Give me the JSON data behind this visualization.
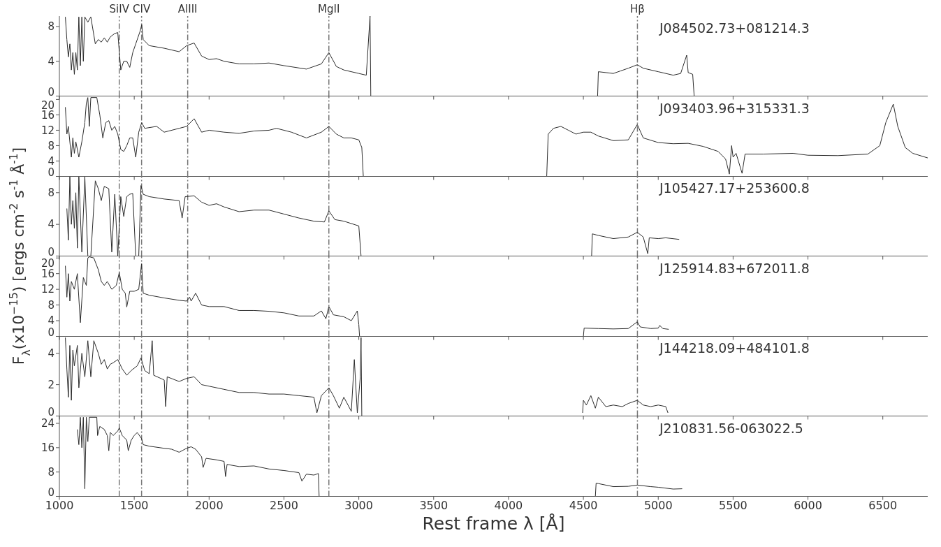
{
  "chart_data": [
    {
      "type": "line",
      "ylabel": "F$_{λ}$(x10$^{−15}$)  [ergs cm$^{-2}$ s$^{-1}$ Å$^{-1}$]",
      "annotations": [
        "J084502.73+081214.3"
      ],
      "xlim": [
        1000,
        6800
      ],
      "xticks": [
        1000,
        1500,
        2000,
        2500,
        3000,
        3500,
        4000,
        4500,
        5000,
        5500,
        6000,
        6500
      ],
      "ylim": [
        0,
        9.2
      ],
      "yticks": [
        0,
        4,
        8
      ],
      "tick_labels": "y",
      "ref_lines": [
        {
          "axis": "x",
          "value": 1400,
          "label": "SiIV",
          "color": "#777777",
          "line_style": "dashed"
        },
        {
          "axis": "x",
          "value": 1549,
          "label": "CIV",
          "color": "#777777",
          "line_style": "dashed"
        },
        {
          "axis": "x",
          "value": 1857,
          "label": "AlIII",
          "color": "#777777",
          "line_style": "dashed"
        },
        {
          "axis": "x",
          "value": 2800,
          "label": "MgII",
          "color": "#777777",
          "line_style": "dashed"
        },
        {
          "axis": "x",
          "value": 4861,
          "label": "Hβ",
          "color": "#777777",
          "line_style": "dashed"
        }
      ],
      "series": [
        {
          "color": "#2b2b2b",
          "x": [
            1040,
            1050,
            1060,
            1070,
            1080,
            1090,
            1100,
            1110,
            1120,
            1130,
            1140,
            1150,
            1160,
            1170,
            1190,
            1210,
            1240,
            1260,
            1280,
            1300,
            1320,
            1340,
            1370,
            1390,
            1410,
            1430,
            1450,
            1470,
            1490,
            1510,
            1540,
            1550,
            1560,
            1600,
            1700,
            1800,
            1850,
            1900,
            1950,
            2000,
            2050,
            2100,
            2200,
            2300,
            2400,
            2500,
            2650,
            2750,
            2800,
            2850,
            2900,
            2950,
            3000,
            3050,
            3075,
            3080,
            4595,
            4600,
            4650,
            4700,
            4750,
            4800,
            4860,
            4900,
            5000,
            5100,
            5150,
            5190,
            5200,
            5230,
            5240
          ],
          "values": [
            9.1,
            6.5,
            4.5,
            6,
            3,
            5,
            2.5,
            5,
            3,
            9.1,
            3.5,
            9.1,
            4,
            9.1,
            8.5,
            9.1,
            6,
            6.5,
            6.2,
            6.7,
            6.2,
            6.8,
            7.2,
            7.3,
            3,
            4,
            4,
            3.3,
            5,
            6,
            7.5,
            8.2,
            6.5,
            5.8,
            5.5,
            5.1,
            5.8,
            6.1,
            4.6,
            4.2,
            4.3,
            4.0,
            3.7,
            3.7,
            3.8,
            3.5,
            3.1,
            3.7,
            5.0,
            3.4,
            3.0,
            2.8,
            2.6,
            2.4,
            9.2,
            0,
            0,
            2.8,
            2.7,
            2.6,
            2.9,
            3.2,
            3.6,
            3.2,
            2.8,
            2.4,
            2.6,
            4.7,
            2.7,
            2.5,
            0
          ]
        }
      ]
    },
    {
      "type": "line",
      "annotations": [
        "J093403.96+315331.3"
      ],
      "xlim": [
        1000,
        6800
      ],
      "xticks": [
        1000,
        1500,
        2000,
        2500,
        3000,
        3500,
        4000,
        4500,
        5000,
        5500,
        6000,
        6500
      ],
      "ylim": [
        0,
        20.8
      ],
      "yticks": [
        0,
        4,
        8,
        12,
        16,
        20
      ],
      "tick_labels": "y",
      "ref_lines": [
        {
          "axis": "x",
          "value": 1400,
          "color": "#777777",
          "line_style": "dashed"
        },
        {
          "axis": "x",
          "value": 1549,
          "color": "#777777",
          "line_style": "dashed"
        },
        {
          "axis": "x",
          "value": 1857,
          "color": "#777777",
          "line_style": "dashed"
        },
        {
          "axis": "x",
          "value": 2800,
          "color": "#777777",
          "line_style": "dashed"
        },
        {
          "axis": "x",
          "value": 4861,
          "color": "#777777",
          "line_style": "dashed"
        }
      ],
      "series": [
        {
          "color": "#2b2b2b",
          "x": [
            1040,
            1050,
            1060,
            1080,
            1090,
            1100,
            1110,
            1130,
            1150,
            1170,
            1180,
            1190,
            1200,
            1210,
            1250,
            1270,
            1290,
            1310,
            1330,
            1350,
            1370,
            1390,
            1410,
            1430,
            1450,
            1470,
            1490,
            1510,
            1530,
            1550,
            1570,
            1650,
            1700,
            1800,
            1850,
            1900,
            1950,
            2000,
            2100,
            2200,
            2300,
            2400,
            2450,
            2550,
            2650,
            2750,
            2800,
            2850,
            2900,
            2950,
            3000,
            3020,
            3030,
            3100,
            4255,
            4265,
            4300,
            4350,
            4400,
            4450,
            4500,
            4550,
            4600,
            4700,
            4800,
            4860,
            4900,
            5000,
            5100,
            5200,
            5300,
            5400,
            5450,
            5475,
            5490,
            5500,
            5520,
            5560,
            5580,
            5700,
            5900,
            6000,
            6200,
            6400,
            6480,
            6520,
            6570,
            6600,
            6650,
            6700,
            6800
          ],
          "values": [
            18,
            11,
            13,
            5,
            10,
            6,
            9,
            5,
            9,
            14,
            19,
            20.5,
            13,
            20.5,
            20.5,
            16,
            10,
            14,
            14.5,
            12,
            13,
            11,
            7,
            6.5,
            8,
            10,
            10,
            5,
            11.5,
            14,
            12.5,
            13,
            11.5,
            12.5,
            13,
            15,
            11.5,
            12,
            11.5,
            11.2,
            11.8,
            12,
            12.5,
            11.5,
            10,
            11.5,
            13,
            11,
            10,
            10,
            9.5,
            7.5,
            0,
            null,
            0,
            11,
            12.5,
            13,
            12,
            11,
            11.5,
            11.5,
            10.5,
            9.3,
            9.5,
            13.5,
            10,
            8.8,
            8.5,
            8.6,
            7.8,
            6.5,
            4.5,
            0.6,
            8,
            5,
            6,
            0.8,
            5.8,
            5.8,
            6,
            5.5,
            5.4,
            5.8,
            8,
            14,
            18.8,
            13,
            7.5,
            6,
            4.8
          ]
        }
      ]
    },
    {
      "type": "line",
      "annotations": [
        "J105427.17+253600.8"
      ],
      "xlim": [
        1000,
        6800
      ],
      "xticks": [
        1000,
        1500,
        2000,
        2500,
        3000,
        3500,
        4000,
        4500,
        5000,
        5500,
        6000,
        6500
      ],
      "ylim": [
        0,
        10.1
      ],
      "yticks": [
        0,
        4,
        8
      ],
      "tick_labels": "y",
      "ref_lines": [
        {
          "axis": "x",
          "value": 1400,
          "color": "#777777",
          "line_style": "dashed"
        },
        {
          "axis": "x",
          "value": 1549,
          "color": "#777777",
          "line_style": "dashed"
        },
        {
          "axis": "x",
          "value": 1857,
          "color": "#777777",
          "line_style": "dashed"
        },
        {
          "axis": "x",
          "value": 2800,
          "color": "#777777",
          "line_style": "dashed"
        },
        {
          "axis": "x",
          "value": 4861,
          "color": "#777777",
          "line_style": "dashed"
        }
      ],
      "series": [
        {
          "color": "#2b2b2b",
          "x": [
            1050,
            1060,
            1070,
            1080,
            1090,
            1100,
            1110,
            1120,
            1130,
            1150,
            1170,
            1190,
            1210,
            1240,
            1260,
            1280,
            1300,
            1330,
            1350,
            1370,
            1390,
            1410,
            1430,
            1450,
            1470,
            1490,
            1510,
            1530,
            1545,
            1560,
            1600,
            1700,
            1800,
            1820,
            1840,
            1900,
            1950,
            2000,
            2050,
            2100,
            2200,
            2300,
            2400,
            2500,
            2600,
            2700,
            2770,
            2800,
            2840,
            2900,
            3000,
            3015,
            3100,
            4555,
            4560,
            4600,
            4700,
            4800,
            4860,
            4900,
            4930,
            4940,
            5000,
            5050,
            5140
          ],
          "values": [
            6,
            2,
            10,
            4,
            7,
            3.5,
            8,
            1,
            10,
            0.5,
            10,
            0,
            0,
            9.5,
            8.5,
            7,
            8.8,
            8.5,
            0.5,
            7.8,
            0,
            7.5,
            5,
            7.5,
            7.8,
            7.9,
            0,
            0,
            8.9,
            7.8,
            7.5,
            7.2,
            7,
            4.8,
            7.5,
            7.6,
            6.8,
            6.4,
            6.6,
            6.2,
            5.6,
            5.8,
            5.8,
            5.3,
            4.8,
            4.4,
            4.3,
            5.7,
            4.6,
            4.4,
            3.8,
            0,
            null,
            0,
            2.8,
            2.6,
            2.2,
            2.4,
            3.0,
            2.4,
            0.3,
            2.3,
            2.2,
            2.3,
            2.1
          ]
        }
      ]
    },
    {
      "type": "line",
      "annotations": [
        "J125914.83+672011.8"
      ],
      "xlim": [
        1000,
        6800
      ],
      "xticks": [
        1000,
        1500,
        2000,
        2500,
        3000,
        3500,
        4000,
        4500,
        5000,
        5500,
        6000,
        6500
      ],
      "ylim": [
        0,
        20.4
      ],
      "yticks": [
        0,
        4,
        8,
        12,
        16,
        20
      ],
      "tick_labels": "y",
      "ref_lines": [
        {
          "axis": "x",
          "value": 1400,
          "color": "#777777",
          "line_style": "dashed"
        },
        {
          "axis": "x",
          "value": 1549,
          "color": "#777777",
          "line_style": "dashed"
        },
        {
          "axis": "x",
          "value": 1857,
          "color": "#777777",
          "line_style": "dashed"
        },
        {
          "axis": "x",
          "value": 2800,
          "color": "#777777",
          "line_style": "dashed"
        },
        {
          "axis": "x",
          "value": 4861,
          "color": "#777777",
          "line_style": "dashed"
        }
      ],
      "series": [
        {
          "color": "#2b2b2b",
          "x": [
            1040,
            1050,
            1060,
            1070,
            1080,
            1100,
            1120,
            1140,
            1160,
            1180,
            1190,
            1200,
            1230,
            1260,
            1280,
            1300,
            1320,
            1350,
            1380,
            1400,
            1420,
            1440,
            1450,
            1470,
            1500,
            1530,
            1549,
            1560,
            1600,
            1700,
            1800,
            1850,
            1870,
            1880,
            1910,
            1950,
            2000,
            2100,
            2200,
            2300,
            2400,
            2500,
            2600,
            2700,
            2750,
            2780,
            2800,
            2830,
            2900,
            2950,
            2990,
            3000,
            3005,
            4500,
            4505,
            4600,
            4700,
            4800,
            4860,
            4880,
            4950,
            5000,
            5010,
            5030,
            5070
          ],
          "values": [
            18,
            10,
            16,
            9,
            14,
            12,
            16,
            3.5,
            15,
            13,
            20,
            20.3,
            20,
            17,
            14,
            13,
            14,
            12,
            13,
            16.3,
            12,
            11,
            7.5,
            11.5,
            11.5,
            12,
            18.5,
            11,
            10.5,
            9.8,
            9.2,
            9,
            10,
            9,
            11,
            8,
            7.6,
            7.6,
            6.6,
            6.6,
            6.4,
            6,
            5.2,
            5.2,
            6.5,
            4.5,
            7.6,
            5.5,
            5,
            4,
            6.5,
            3,
            0,
            0,
            2.1,
            2.0,
            1.9,
            2.0,
            3.7,
            2.4,
            2.0,
            2.1,
            2.8,
            2.0,
            1.8
          ]
        }
      ]
    },
    {
      "type": "line",
      "annotations": [
        "J144218.09+484101.8"
      ],
      "xlim": [
        1000,
        6800
      ],
      "xticks": [
        1000,
        1500,
        2000,
        2500,
        3000,
        3500,
        4000,
        4500,
        5000,
        5500,
        6000,
        6500
      ],
      "ylim": [
        0,
        5.1
      ],
      "yticks": [
        0,
        2,
        4
      ],
      "tick_labels": "y",
      "ref_lines": [
        {
          "axis": "x",
          "value": 1400,
          "color": "#777777",
          "line_style": "dashed"
        },
        {
          "axis": "x",
          "value": 1549,
          "color": "#777777",
          "line_style": "dashed"
        },
        {
          "axis": "x",
          "value": 1857,
          "color": "#777777",
          "line_style": "dashed"
        },
        {
          "axis": "x",
          "value": 2800,
          "color": "#777777",
          "line_style": "dashed"
        },
        {
          "axis": "x",
          "value": 4861,
          "color": "#777777",
          "line_style": "dashed"
        }
      ],
      "series": [
        {
          "color": "#2b2b2b",
          "x": [
            1040,
            1050,
            1060,
            1070,
            1080,
            1090,
            1100,
            1120,
            1130,
            1150,
            1170,
            1190,
            1210,
            1230,
            1260,
            1280,
            1300,
            1320,
            1340,
            1360,
            1390,
            1420,
            1450,
            1480,
            1520,
            1545,
            1570,
            1600,
            1620,
            1630,
            1700,
            1710,
            1720,
            1800,
            1850,
            1900,
            1950,
            2000,
            2100,
            2200,
            2300,
            2400,
            2500,
            2600,
            2700,
            2720,
            2750,
            2800,
            2830,
            2870,
            2900,
            2950,
            2970,
            2990,
            3010,
            3015,
            3020,
            3100,
            4495,
            4500,
            4520,
            4550,
            4580,
            4600,
            4650,
            4700,
            4760,
            4800,
            4860,
            4900,
            4950,
            5000,
            5050,
            5065
          ],
          "values": [
            5,
            3,
            1.2,
            4.5,
            1,
            4.2,
            3.2,
            4.5,
            1.8,
            4,
            2.5,
            4.8,
            2.5,
            4.8,
            4,
            3.3,
            3.6,
            3.0,
            3.3,
            3.4,
            3.6,
            3.0,
            2.6,
            2.9,
            3.2,
            3.7,
            2.9,
            2.7,
            4.8,
            2.6,
            2.3,
            0.6,
            2.5,
            2.2,
            2.4,
            2.5,
            2.0,
            1.9,
            1.7,
            1.5,
            1.5,
            1.4,
            1.4,
            1.3,
            1.2,
            0.2,
            1.3,
            1.8,
            1.3,
            0.5,
            1.2,
            0.3,
            3.6,
            0.2,
            2.5,
            5.0,
            0,
            null,
            0.2,
            1.0,
            0.7,
            1.3,
            0.5,
            1.2,
            0.6,
            0.7,
            0.6,
            0.8,
            1.0,
            0.7,
            0.6,
            0.7,
            0.6,
            0.2
          ]
        }
      ]
    },
    {
      "type": "line",
      "xlabel": "Rest frame λ [Å]",
      "annotations": [
        "J210831.56-063022.5"
      ],
      "xlim": [
        1000,
        6800
      ],
      "xticks": [
        1000,
        1500,
        2000,
        2500,
        3000,
        3500,
        4000,
        4500,
        5000,
        5500,
        6000,
        6500
      ],
      "ylim": [
        0,
        26.3
      ],
      "yticks": [
        0,
        8,
        16,
        24
      ],
      "ref_lines": [
        {
          "axis": "x",
          "value": 1400,
          "color": "#777777",
          "line_style": "dashed"
        },
        {
          "axis": "x",
          "value": 1549,
          "color": "#777777",
          "line_style": "dashed"
        },
        {
          "axis": "x",
          "value": 1857,
          "color": "#777777",
          "line_style": "dashed"
        },
        {
          "axis": "x",
          "value": 2800,
          "color": "#777777",
          "line_style": "dashed"
        },
        {
          "axis": "x",
          "value": 4861,
          "color": "#777777",
          "line_style": "dashed"
        }
      ],
      "series": [
        {
          "color": "#2b2b2b",
          "x": [
            1120,
            1130,
            1140,
            1150,
            1160,
            1170,
            1180,
            1190,
            1200,
            1250,
            1255,
            1270,
            1300,
            1320,
            1330,
            1340,
            1360,
            1390,
            1400,
            1420,
            1450,
            1460,
            1480,
            1500,
            1520,
            1549,
            1560,
            1600,
            1700,
            1750,
            1800,
            1850,
            1880,
            1910,
            1950,
            1960,
            1980,
            2050,
            2100,
            2110,
            2120,
            2200,
            2300,
            2400,
            2500,
            2600,
            2620,
            2650,
            2700,
            2730,
            2735,
            2800,
            4580,
            4585,
            4600,
            4700,
            4800,
            4860,
            4950,
            5000,
            5100,
            5160
          ],
          "values": [
            22,
            17,
            26,
            16,
            26,
            2.5,
            26,
            18,
            26,
            26,
            20,
            23,
            22,
            20,
            15,
            21,
            20,
            21.5,
            22.5,
            20,
            18.5,
            15,
            18.5,
            20,
            21,
            19,
            17,
            16.5,
            15.8,
            15.5,
            14.5,
            15.8,
            16.3,
            15.5,
            13.0,
            9.5,
            12.5,
            12,
            11.5,
            6.5,
            10.5,
            9.8,
            10,
            9,
            8.5,
            7.8,
            5,
            7.3,
            7,
            7.5,
            0,
            null,
            0,
            4.3,
            4.2,
            3.2,
            3.3,
            3.7,
            3.2,
            3.0,
            2.4,
            2.5
          ]
        }
      ]
    }
  ]
}
